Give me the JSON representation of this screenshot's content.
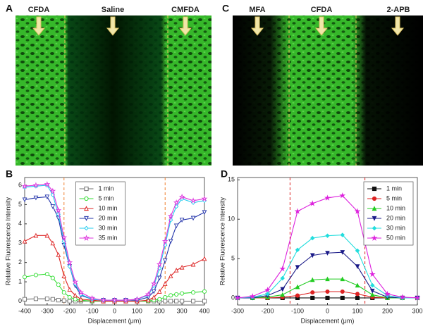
{
  "images": [
    {
      "label": "A",
      "arrows": [
        "CFDA",
        "Saline",
        "CMFDA"
      ]
    },
    {
      "label": "C",
      "arrows": [
        "MFA",
        "CFDA",
        "2-APB"
      ]
    }
  ],
  "chart_data": [
    {
      "type": "line",
      "panel": "B",
      "ylabel": "Relative Fluorescence Intensity",
      "xlabel": "Displacement (μm)",
      "xlim": [
        -400,
        400
      ],
      "xticks": [
        -400,
        -300,
        -200,
        -100,
        0,
        100,
        200,
        300,
        400
      ],
      "ylim": [
        -0.2,
        6.4
      ],
      "yticks": [
        0,
        1,
        2,
        3,
        4,
        5,
        6
      ],
      "vlines": [
        -225,
        225
      ],
      "vline_color": "#f08030",
      "marker_fill": false,
      "legend": "upper-center",
      "x": [
        -400,
        -350,
        -300,
        -275,
        -250,
        -225,
        -200,
        -175,
        -150,
        -100,
        -50,
        0,
        50,
        100,
        150,
        175,
        200,
        225,
        250,
        275,
        300,
        350,
        400
      ],
      "series": [
        {
          "name": "1 min",
          "color": "#707070",
          "marker": "square",
          "values": [
            0.1,
            0.12,
            0.12,
            0.1,
            0.05,
            0.03,
            0,
            0,
            0,
            0,
            0,
            0,
            0,
            0,
            0,
            0,
            0,
            0,
            0,
            0,
            0,
            0,
            0
          ]
        },
        {
          "name": "5 min",
          "color": "#33dd33",
          "marker": "circle",
          "values": [
            1.25,
            1.35,
            1.4,
            1.2,
            0.85,
            0.45,
            0.2,
            0.1,
            0.05,
            0,
            0,
            0,
            0,
            0,
            0,
            0.05,
            0.1,
            0.2,
            0.3,
            0.35,
            0.4,
            0.45,
            0.5
          ]
        },
        {
          "name": "10 min",
          "color": "#dd2222",
          "marker": "triangle-up",
          "values": [
            3.1,
            3.4,
            3.4,
            3.0,
            2.4,
            1.3,
            0.6,
            0.3,
            0.1,
            0.05,
            0,
            0,
            0,
            0,
            0.05,
            0.2,
            0.5,
            0.9,
            1.3,
            1.6,
            1.75,
            1.9,
            2.2
          ]
        },
        {
          "name": "20 min",
          "color": "#2233aa",
          "marker": "triangle-down",
          "values": [
            5.25,
            5.35,
            5.4,
            4.9,
            4.3,
            2.9,
            1.8,
            0.8,
            0.3,
            0.1,
            0.05,
            0.05,
            0.05,
            0.05,
            0.2,
            0.5,
            1.2,
            2.1,
            3.1,
            3.9,
            4.2,
            4.3,
            4.6
          ]
        },
        {
          "name": "30 min",
          "color": "#22ccee",
          "marker": "diamond",
          "values": [
            5.9,
            5.95,
            6.0,
            5.5,
            4.5,
            3.1,
            1.8,
            0.9,
            0.35,
            0.1,
            0.05,
            0.05,
            0.05,
            0.1,
            0.3,
            0.8,
            1.7,
            2.9,
            4.2,
            4.9,
            5.3,
            5.1,
            5.2
          ]
        },
        {
          "name": "35 min",
          "color": "#dd33dd",
          "marker": "star",
          "values": [
            5.95,
            6.0,
            6.05,
            5.7,
            4.7,
            3.3,
            2.0,
            1.0,
            0.45,
            0.15,
            0.05,
            0.05,
            0.05,
            0.1,
            0.35,
            0.9,
            1.9,
            3.1,
            4.4,
            5.1,
            5.4,
            5.2,
            5.3
          ]
        }
      ]
    },
    {
      "type": "line",
      "panel": "D",
      "ylabel": "Relative Fluorescence Intensity",
      "xlabel": "Displacement (μm)",
      "xlim": [
        -300,
        300
      ],
      "xticks": [
        -300,
        -200,
        -100,
        0,
        100,
        200,
        300
      ],
      "ylim": [
        -0.9,
        15.3
      ],
      "yticks": [
        0,
        5,
        10,
        15
      ],
      "vlines": [
        -125,
        125
      ],
      "vline_color": "#dd2222",
      "marker_fill": true,
      "legend": "upper-right",
      "x": [
        -300,
        -250,
        -200,
        -150,
        -100,
        -50,
        0,
        50,
        100,
        150,
        200,
        250,
        300
      ],
      "series": [
        {
          "name": "1 min",
          "color": "#111111",
          "marker": "square",
          "values": [
            0,
            0,
            0,
            0,
            0,
            0,
            0,
            0,
            0,
            0,
            0,
            0,
            0
          ]
        },
        {
          "name": "5 min",
          "color": "#dd2222",
          "marker": "circle",
          "values": [
            0,
            0,
            0,
            0.1,
            0.3,
            0.7,
            0.8,
            0.8,
            0.5,
            0.1,
            0,
            0,
            0
          ]
        },
        {
          "name": "10 min",
          "color": "#22cc22",
          "marker": "triangle-up",
          "values": [
            0,
            0,
            0.1,
            0.4,
            1.4,
            2.3,
            2.4,
            2.4,
            1.6,
            0.4,
            0,
            0,
            0
          ]
        },
        {
          "name": "20 min",
          "color": "#1a1a88",
          "marker": "triangle-down",
          "values": [
            0,
            0,
            0.3,
            1.1,
            3.9,
            5.4,
            5.7,
            5.8,
            4.0,
            0.9,
            0.1,
            0,
            0
          ]
        },
        {
          "name": "30 min",
          "color": "#22dddd",
          "marker": "diamond",
          "values": [
            0,
            0.1,
            0.5,
            2.5,
            6.1,
            7.6,
            7.9,
            8.0,
            6.0,
            1.6,
            0.3,
            0,
            0
          ]
        },
        {
          "name": "50 min",
          "color": "#dd22dd",
          "marker": "star",
          "values": [
            0,
            0.2,
            1.0,
            3.7,
            11,
            12,
            12.7,
            13,
            11,
            3,
            0.5,
            0.1,
            0
          ]
        }
      ]
    }
  ]
}
